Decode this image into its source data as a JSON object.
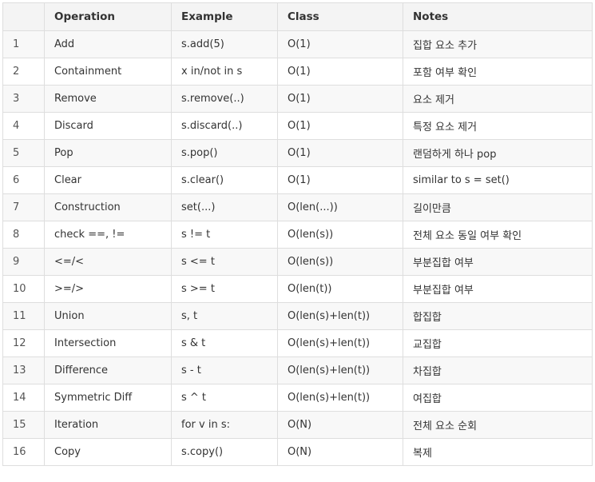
{
  "table": {
    "headers": [
      "",
      "Operation",
      "Example",
      "Class",
      "Notes"
    ],
    "rows": [
      [
        "1",
        "Add",
        "s.add(5)",
        "O(1)",
        "집합 요소 추가"
      ],
      [
        "2",
        "Containment",
        "x in/not in s",
        "O(1)",
        "포함 여부 확인"
      ],
      [
        "3",
        "Remove",
        "s.remove(..)",
        "O(1)",
        "요소 제거"
      ],
      [
        "4",
        "Discard",
        "s.discard(..)",
        "O(1)",
        "특정 요소 제거"
      ],
      [
        "5",
        "Pop",
        "s.pop()",
        "O(1)",
        "랜덤하게 하나 pop"
      ],
      [
        "6",
        "Clear",
        "s.clear()",
        "O(1)",
        "similar to s = set()"
      ],
      [
        "7",
        "Construction",
        "set(...)",
        "O(len(...))",
        "길이만큼"
      ],
      [
        "8",
        "check ==, !=",
        "s != t",
        "O(len(s))",
        "전체 요소 동일 여부 확인"
      ],
      [
        "9",
        "<=/<",
        "s <= t",
        "O(len(s))",
        "부분집합 여부"
      ],
      [
        "10",
        ">=/>",
        "s >= t",
        "O(len(t))",
        "부분집합 여부"
      ],
      [
        "11",
        "Union",
        "s, t",
        "O(len(s)+len(t))",
        "합집합"
      ],
      [
        "12",
        "Intersection",
        "s & t",
        "O(len(s)+len(t))",
        "교집합"
      ],
      [
        "13",
        "Difference",
        "s - t",
        "O(len(s)+len(t))",
        "차집합"
      ],
      [
        "14",
        "Symmetric Diff",
        "s ^ t",
        "O(len(s)+len(t))",
        "여집합"
      ],
      [
        "15",
        "Iteration",
        "for v in s:",
        "O(N)",
        "전체 요소 순회"
      ],
      [
        "16",
        "Copy",
        "s.copy()",
        "O(N)",
        "복제"
      ]
    ]
  }
}
